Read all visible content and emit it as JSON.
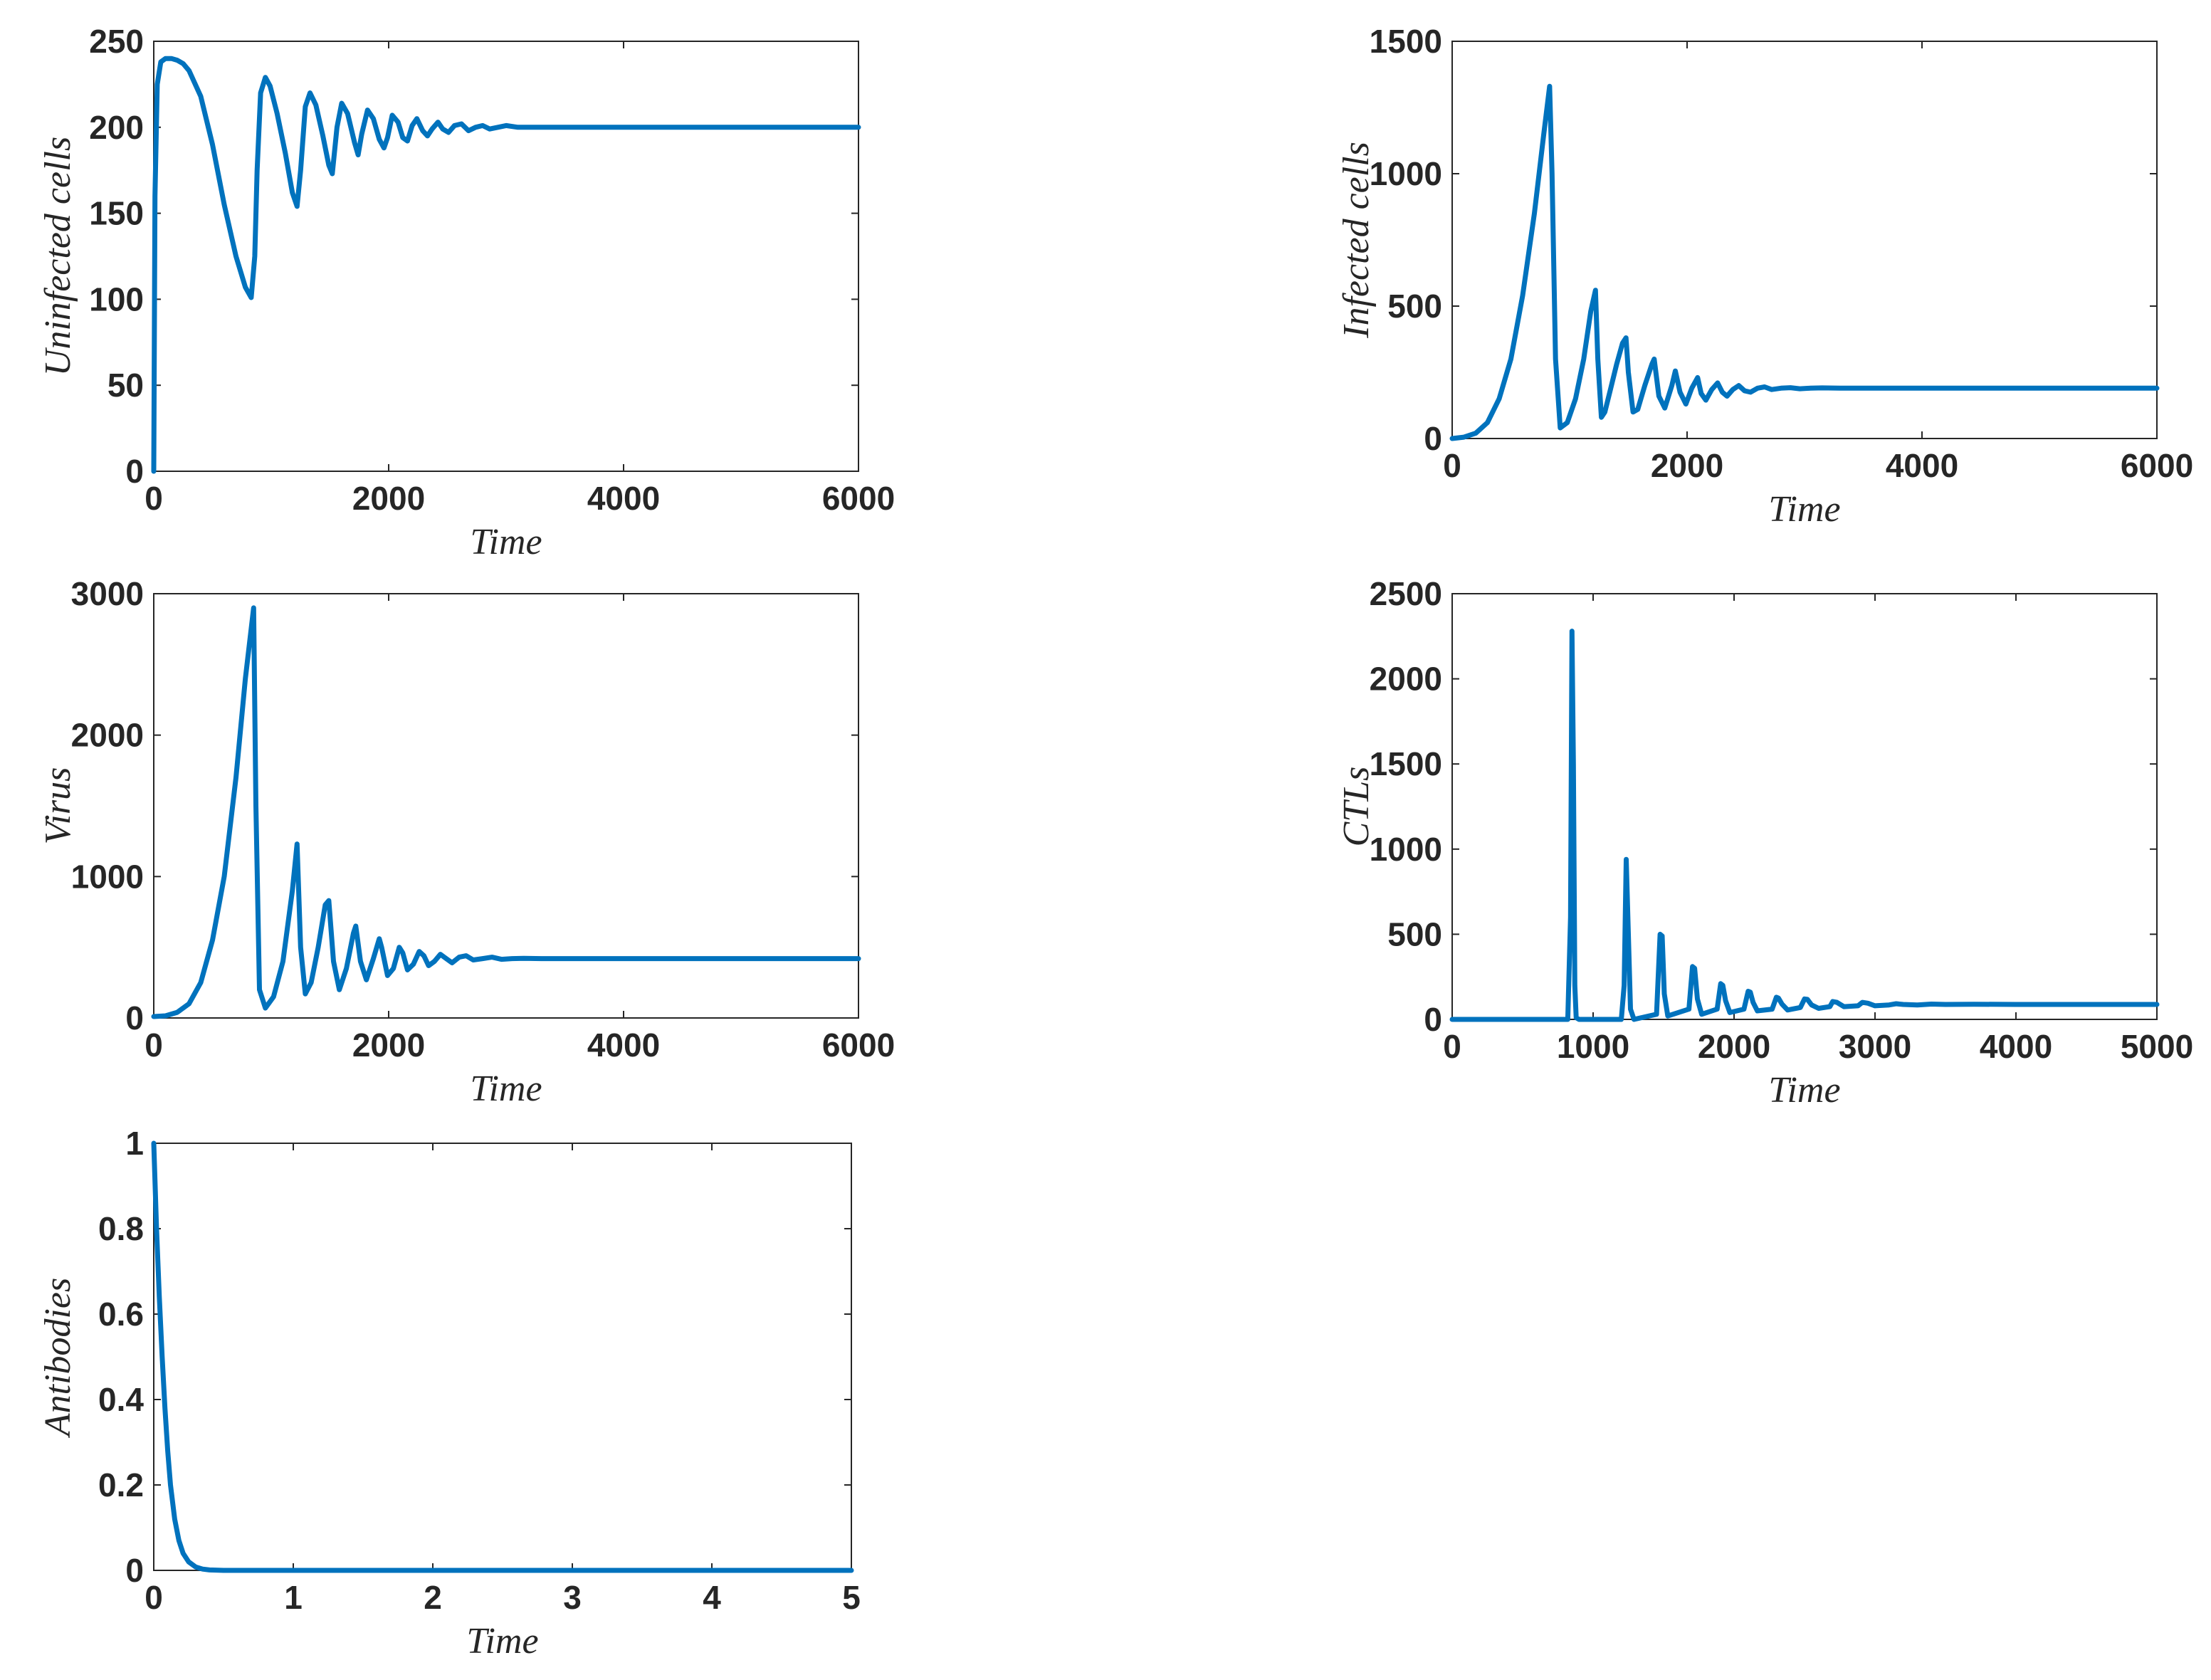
{
  "style": {
    "line_color": "#0072BD",
    "axis_color": "#262626"
  },
  "chart_data": [
    {
      "type": "line",
      "xlabel": "Time",
      "ylabel": "Uninfected cells",
      "xlim": [
        0,
        6000
      ],
      "ylim": [
        0,
        250
      ],
      "xticks": [
        0,
        2000,
        4000,
        6000
      ],
      "yticks": [
        0,
        50,
        100,
        150,
        200,
        250
      ],
      "x": [
        0,
        10,
        30,
        60,
        100,
        150,
        200,
        250,
        300,
        400,
        500,
        600,
        700,
        780,
        830,
        860,
        880,
        910,
        950,
        990,
        1050,
        1120,
        1180,
        1220,
        1250,
        1290,
        1330,
        1380,
        1440,
        1490,
        1520,
        1560,
        1600,
        1650,
        1710,
        1740,
        1770,
        1820,
        1870,
        1920,
        1960,
        1990,
        2030,
        2080,
        2120,
        2160,
        2200,
        2240,
        2290,
        2330,
        2370,
        2420,
        2460,
        2510,
        2560,
        2620,
        2680,
        2740,
        2800,
        2860,
        2930,
        3000,
        3100,
        3200,
        3400,
        3700,
        4000,
        5000,
        6000
      ],
      "values": [
        0,
        160,
        225,
        238,
        240,
        240,
        239,
        237,
        233,
        218,
        190,
        155,
        125,
        107,
        101,
        125,
        175,
        220,
        229,
        224,
        208,
        185,
        162,
        154,
        175,
        212,
        220,
        213,
        195,
        178,
        173,
        200,
        214,
        208,
        191,
        184,
        196,
        210,
        205,
        193,
        188,
        194,
        207,
        203,
        194,
        192,
        201,
        205,
        198,
        195,
        199,
        203,
        199,
        197,
        201,
        202,
        198,
        200,
        201,
        199,
        200,
        201,
        200,
        200,
        200,
        200,
        200,
        200,
        200
      ]
    },
    {
      "type": "line",
      "xlabel": "Time",
      "ylabel": "Infected cells",
      "xlim": [
        0,
        6000
      ],
      "ylim": [
        0,
        1500
      ],
      "xticks": [
        0,
        2000,
        4000,
        6000
      ],
      "yticks": [
        0,
        500,
        1000,
        1500
      ],
      "x": [
        0,
        100,
        200,
        300,
        400,
        500,
        600,
        700,
        780,
        830,
        850,
        880,
        920,
        980,
        1050,
        1120,
        1180,
        1220,
        1240,
        1270,
        1300,
        1350,
        1400,
        1450,
        1480,
        1500,
        1540,
        1580,
        1640,
        1700,
        1720,
        1760,
        1810,
        1870,
        1900,
        1940,
        1990,
        2040,
        2090,
        2120,
        2160,
        2210,
        2260,
        2300,
        2340,
        2390,
        2440,
        2490,
        2540,
        2600,
        2660,
        2720,
        2800,
        2880,
        2960,
        3050,
        3150,
        3300,
        3500,
        4000,
        5000,
        6000
      ],
      "values": [
        0,
        5,
        20,
        60,
        150,
        300,
        540,
        850,
        1150,
        1330,
        1000,
        300,
        40,
        60,
        150,
        300,
        480,
        560,
        300,
        80,
        100,
        190,
        280,
        360,
        380,
        250,
        100,
        110,
        200,
        280,
        300,
        160,
        115,
        200,
        255,
        175,
        130,
        190,
        230,
        170,
        145,
        185,
        210,
        175,
        160,
        185,
        200,
        180,
        175,
        190,
        195,
        185,
        190,
        192,
        188,
        190,
        191,
        190,
        190,
        190,
        190,
        190
      ]
    },
    {
      "type": "line",
      "xlabel": "Time",
      "ylabel": "Virus",
      "xlim": [
        0,
        6000
      ],
      "ylim": [
        0,
        3000
      ],
      "xticks": [
        0,
        2000,
        4000,
        6000
      ],
      "yticks": [
        0,
        1000,
        2000,
        3000
      ],
      "x": [
        0,
        100,
        200,
        300,
        400,
        500,
        600,
        700,
        780,
        850,
        870,
        900,
        950,
        1020,
        1100,
        1180,
        1220,
        1250,
        1290,
        1340,
        1400,
        1460,
        1490,
        1530,
        1580,
        1640,
        1700,
        1720,
        1760,
        1810,
        1870,
        1920,
        1940,
        1990,
        2040,
        2090,
        2120,
        2160,
        2210,
        2260,
        2300,
        2340,
        2390,
        2440,
        2490,
        2540,
        2600,
        2660,
        2720,
        2800,
        2880,
        2960,
        3050,
        3150,
        3300,
        3500,
        4000,
        5000,
        6000
      ],
      "values": [
        10,
        15,
        40,
        100,
        250,
        550,
        1000,
        1700,
        2400,
        2900,
        1500,
        200,
        70,
        150,
        400,
        900,
        1230,
        500,
        170,
        250,
        500,
        800,
        830,
        400,
        200,
        350,
        600,
        650,
        400,
        270,
        420,
        560,
        500,
        300,
        350,
        500,
        460,
        340,
        380,
        470,
        440,
        370,
        400,
        450,
        420,
        390,
        430,
        440,
        410,
        420,
        430,
        415,
        420,
        422,
        420,
        420,
        420,
        420,
        420
      ]
    },
    {
      "type": "line",
      "xlabel": "Time",
      "ylabel": "CTLs",
      "xlim": [
        0,
        5000
      ],
      "ylim": [
        0,
        2500
      ],
      "xticks": [
        0,
        1000,
        2000,
        3000,
        4000,
        5000
      ],
      "yticks": [
        0,
        500,
        1000,
        1500,
        2000,
        2500
      ],
      "x": [
        0,
        700,
        820,
        840,
        850,
        860,
        870,
        880,
        900,
        1200,
        1220,
        1235,
        1250,
        1265,
        1290,
        1450,
        1475,
        1490,
        1505,
        1530,
        1680,
        1705,
        1720,
        1740,
        1770,
        1880,
        1905,
        1920,
        1940,
        1970,
        2070,
        2100,
        2115,
        2135,
        2165,
        2270,
        2300,
        2315,
        2340,
        2380,
        2470,
        2500,
        2520,
        2550,
        2600,
        2680,
        2700,
        2730,
        2780,
        2880,
        2910,
        2950,
        3000,
        3100,
        3150,
        3200,
        3300,
        3400,
        3500,
        3700,
        4000,
        4500,
        5000
      ],
      "values": [
        0,
        0,
        0,
        600,
        2280,
        1500,
        200,
        10,
        0,
        0,
        200,
        940,
        500,
        60,
        0,
        30,
        500,
        490,
        150,
        20,
        60,
        310,
        300,
        120,
        30,
        60,
        210,
        200,
        110,
        40,
        60,
        165,
        160,
        100,
        50,
        60,
        130,
        125,
        90,
        55,
        70,
        120,
        118,
        85,
        65,
        75,
        105,
        100,
        75,
        80,
        100,
        95,
        80,
        85,
        92,
        88,
        85,
        90,
        88,
        89,
        88,
        88,
        88
      ]
    },
    {
      "type": "line",
      "xlabel": "Time",
      "ylabel": "Antibodies",
      "xlim": [
        0,
        5
      ],
      "ylim": [
        0,
        1
      ],
      "xticks": [
        0,
        1,
        2,
        3,
        4,
        5
      ],
      "yticks": [
        0,
        0.2,
        0.4,
        0.6,
        0.8,
        1
      ],
      "x": [
        0,
        0.02,
        0.04,
        0.06,
        0.08,
        0.1,
        0.12,
        0.15,
        0.18,
        0.21,
        0.25,
        0.3,
        0.35,
        0.4,
        0.5,
        1,
        2,
        3,
        4,
        5
      ],
      "values": [
        1,
        0.8,
        0.64,
        0.5,
        0.38,
        0.28,
        0.2,
        0.12,
        0.07,
        0.04,
        0.02,
        0.008,
        0.003,
        0.001,
        0,
        0,
        0,
        0,
        0,
        0
      ]
    }
  ]
}
